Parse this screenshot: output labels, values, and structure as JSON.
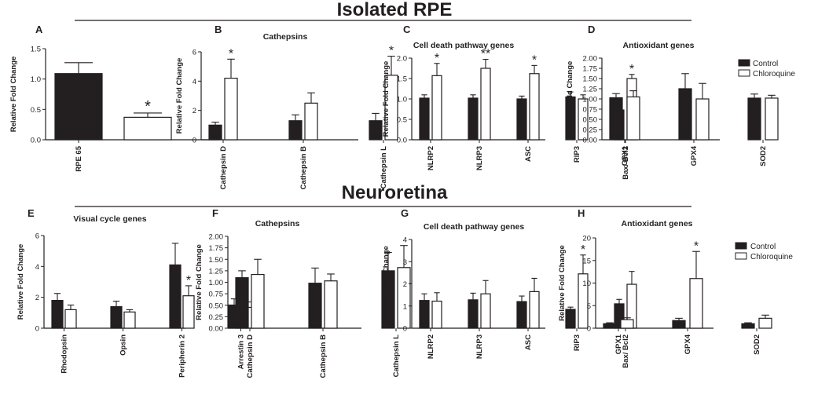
{
  "sections": {
    "top": "Isolated RPE",
    "bottom": "Neuroretina"
  },
  "legends": [
    {
      "control": "Control",
      "treated": "Chloroquine"
    },
    {
      "control": "Control",
      "treated": "Chloroquine"
    }
  ],
  "colors": {
    "control": "#231f20",
    "treated": "#ffffff",
    "stroke": "#231f20"
  },
  "chart_data": [
    {
      "type": "bar",
      "panel": "A",
      "title": "",
      "ylabel": "Relative Fold Change",
      "ylim": [
        0,
        1.5
      ],
      "yticks": [
        "0.0",
        "0.5",
        "1.0",
        "1.5"
      ],
      "categories": [
        "RPE 65"
      ],
      "series": [
        {
          "name": "Control",
          "values": [
            1.09
          ],
          "errors": [
            0.18
          ]
        },
        {
          "name": "Chloroquine",
          "values": [
            0.37
          ],
          "errors": [
            0.07
          ]
        }
      ],
      "significance": [
        {
          "category": "RPE 65",
          "series": "Chloroquine",
          "label": "*"
        }
      ]
    },
    {
      "type": "bar",
      "panel": "B",
      "title": "Cathepsins",
      "ylabel": "Relative Fold Change",
      "ylim": [
        0,
        6
      ],
      "yticks": [
        "0",
        "2",
        "4",
        "6"
      ],
      "categories": [
        "Cathepsin D",
        "Cathepsin B",
        "Cathepsin L"
      ],
      "series": [
        {
          "name": "Control",
          "values": [
            1.0,
            1.3,
            1.3
          ],
          "errors": [
            0.2,
            0.4,
            0.5
          ]
        },
        {
          "name": "Chloroquine",
          "values": [
            4.2,
            2.5,
            4.4
          ],
          "errors": [
            1.3,
            0.7,
            1.3
          ]
        }
      ],
      "significance": [
        {
          "category": "Cathepsin D",
          "series": "Chloroquine",
          "label": "*"
        },
        {
          "category": "Cathepsin L",
          "series": "Chloroquine",
          "label": "*"
        }
      ]
    },
    {
      "type": "bar",
      "panel": "C",
      "title": "Cell death pathway genes",
      "ylabel": "Relative Fold Change",
      "ylim": [
        0,
        2.0
      ],
      "yticks": [
        "0.0",
        "0.5",
        "1.0",
        "1.5",
        "2.0"
      ],
      "categories": [
        "NLRP2",
        "NLRP3",
        "ASC",
        "RIP3",
        "Bax/ Bcl2"
      ],
      "series": [
        {
          "name": "Control",
          "values": [
            1.02,
            1.02,
            1.0,
            1.05,
            0.73
          ],
          "errors": [
            0.08,
            0.08,
            0.07,
            0.12,
            0.23
          ]
        },
        {
          "name": "Chloroquine",
          "values": [
            1.57,
            1.75,
            1.62,
            1.0,
            1.5
          ],
          "errors": [
            0.3,
            0.22,
            0.2,
            0.1,
            0.1
          ]
        }
      ],
      "significance": [
        {
          "category": "NLRP2",
          "series": "Chloroquine",
          "label": "*"
        },
        {
          "category": "NLRP3",
          "series": "Chloroquine",
          "label": "**"
        },
        {
          "category": "ASC",
          "series": "Chloroquine",
          "label": "*"
        },
        {
          "category": "Bax/ Bcl2",
          "series": "Chloroquine",
          "label": "*"
        }
      ]
    },
    {
      "type": "bar",
      "panel": "D",
      "title": "Antioxidant genes",
      "ylabel": "Relative Fold Change",
      "ylim": [
        0,
        2.0
      ],
      "yticks": [
        "0.00",
        "0.25",
        "0.50",
        "0.75",
        "1.00",
        "1.25",
        "1.50",
        "1.75",
        "2.00"
      ],
      "categories": [
        "GPX1",
        "GPX4",
        "SOD2"
      ],
      "series": [
        {
          "name": "Control",
          "values": [
            1.03,
            1.25,
            1.02
          ],
          "errors": [
            0.1,
            0.37,
            0.1
          ]
        },
        {
          "name": "Chloroquine",
          "values": [
            1.05,
            1.0,
            1.02
          ],
          "errors": [
            0.15,
            0.38,
            0.07
          ]
        }
      ],
      "significance": []
    },
    {
      "type": "bar",
      "panel": "E",
      "title": "Visual cycle genes",
      "ylabel": "Relative Fold Change",
      "ylim": [
        0,
        6
      ],
      "yticks": [
        "0",
        "2",
        "4",
        "6"
      ],
      "categories": [
        "Rhodopsin",
        "Opsin",
        "Peripherin 2",
        "Arrestin 3"
      ],
      "series": [
        {
          "name": "Control",
          "values": [
            1.8,
            1.4,
            4.1,
            1.5
          ],
          "errors": [
            0.45,
            0.35,
            1.4,
            0.4
          ]
        },
        {
          "name": "Chloroquine",
          "values": [
            1.2,
            1.05,
            2.1,
            1.35
          ],
          "errors": [
            0.3,
            0.15,
            0.65,
            0.35
          ]
        }
      ],
      "significance": [
        {
          "category": "Peripherin 2",
          "series": "Chloroquine",
          "label": "*"
        }
      ]
    },
    {
      "type": "bar",
      "panel": "F",
      "title": "Cathepsins",
      "ylabel": "Relative Fold Change",
      "ylim": [
        0,
        2.0
      ],
      "yticks": [
        "0.00",
        "0.25",
        "0.50",
        "0.75",
        "1.00",
        "1.25",
        "1.50",
        "1.75",
        "2.00"
      ],
      "categories": [
        "Cathepsin D",
        "Cathepsin B",
        "Cathepsin L"
      ],
      "series": [
        {
          "name": "Control",
          "values": [
            1.1,
            0.98,
            1.25
          ],
          "errors": [
            0.15,
            0.33,
            0.4
          ]
        },
        {
          "name": "Chloroquine",
          "values": [
            1.17,
            1.03,
            1.32
          ],
          "errors": [
            0.33,
            0.15,
            0.48
          ]
        }
      ],
      "significance": []
    },
    {
      "type": "bar",
      "panel": "G",
      "title": "Cell death pathway genes",
      "ylabel": "Relative Fold Change",
      "ylim": [
        0,
        4
      ],
      "yticks": [
        "0",
        "1",
        "2",
        "3",
        "4"
      ],
      "categories": [
        "NLRP2",
        "NLRP3",
        "ASC",
        "RIP3",
        "Bax/ Bcl2"
      ],
      "series": [
        {
          "name": "Control",
          "values": [
            1.25,
            1.28,
            1.2,
            0.85,
            1.1
          ],
          "errors": [
            0.3,
            0.3,
            0.25,
            0.1,
            0.2
          ]
        },
        {
          "name": "Chloroquine",
          "values": [
            1.22,
            1.55,
            1.65,
            2.45,
            1.98
          ],
          "errors": [
            0.38,
            0.6,
            0.6,
            0.85,
            0.58
          ]
        }
      ],
      "significance": [
        {
          "category": "RIP3",
          "series": "Chloroquine",
          "label": "*"
        }
      ]
    },
    {
      "type": "bar",
      "panel": "H",
      "title": "Antioxidant genes",
      "ylabel": "Relative Fold Change",
      "ylim": [
        0,
        20
      ],
      "yticks": [
        "0",
        "5",
        "10",
        "15",
        "20"
      ],
      "categories": [
        "GPX1",
        "GPX4",
        "SOD2"
      ],
      "series": [
        {
          "name": "Control",
          "values": [
            1.0,
            1.7,
            1.0
          ],
          "errors": [
            0.2,
            0.5,
            0.2
          ]
        },
        {
          "name": "Chloroquine",
          "values": [
            1.9,
            11.0,
            2.2
          ],
          "errors": [
            0.4,
            6.0,
            0.7
          ]
        }
      ],
      "significance": [
        {
          "category": "GPX4",
          "series": "Chloroquine",
          "label": "*"
        }
      ]
    }
  ]
}
